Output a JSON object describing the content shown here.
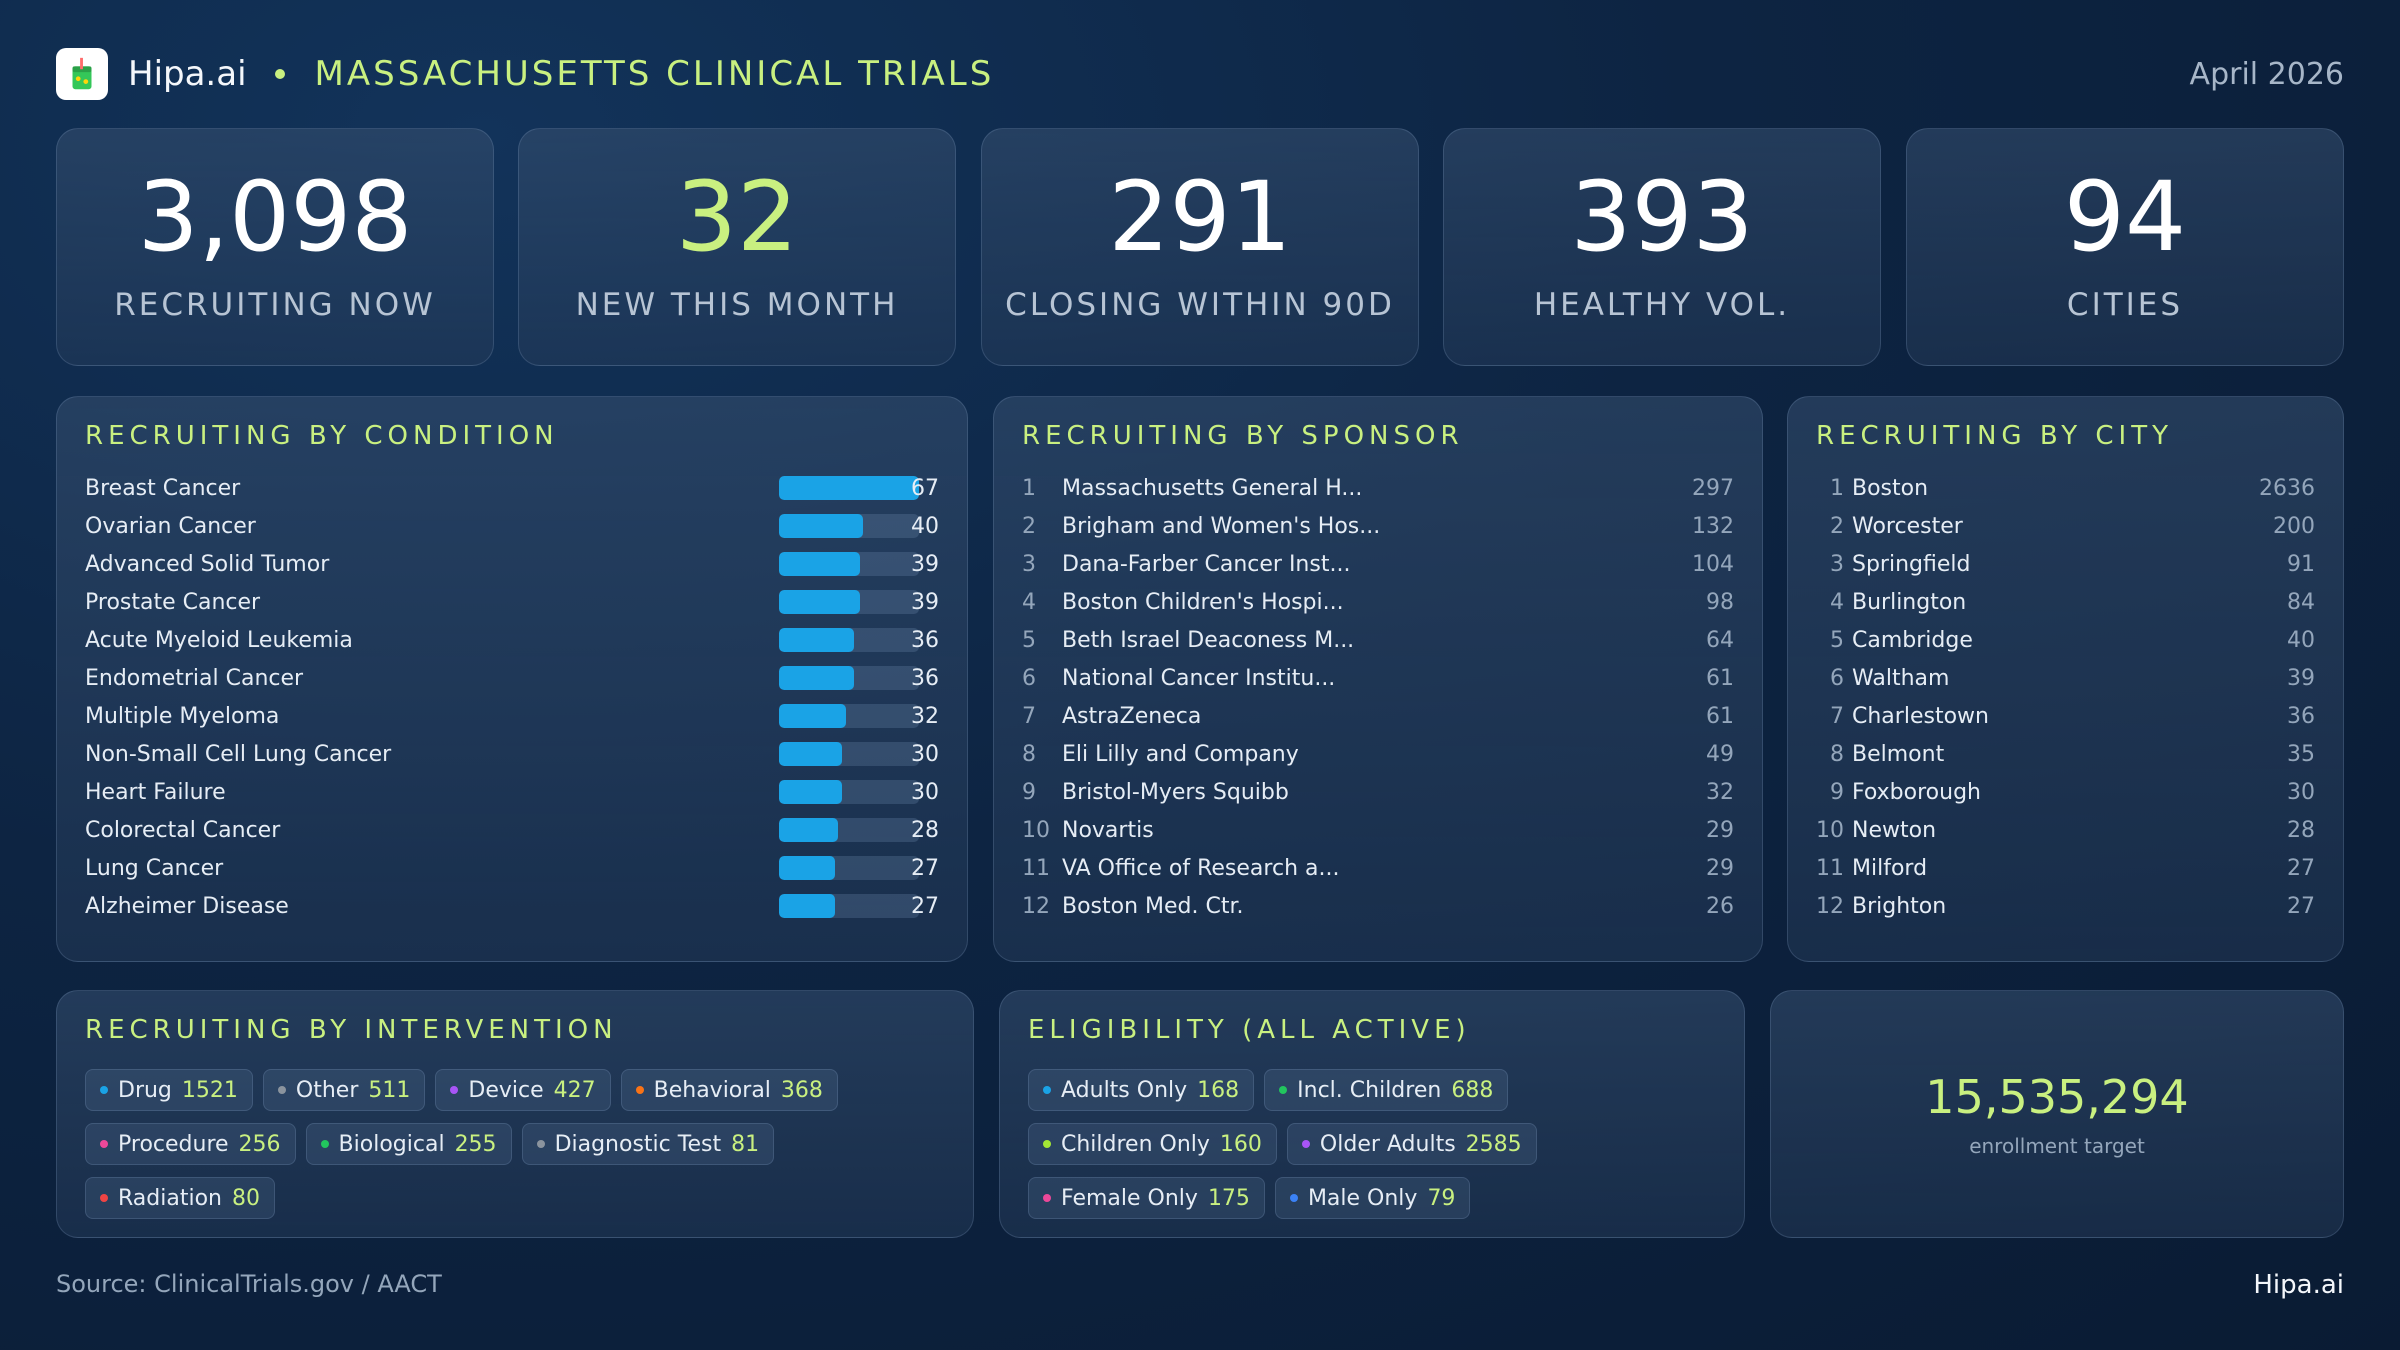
{
  "header": {
    "brand": "Hipa.ai",
    "title": "MASSACHUSETTS CLINICAL TRIALS",
    "date": "April 2026"
  },
  "stats": [
    {
      "value": "3,098",
      "label": "RECRUITING NOW",
      "accent": "#ffffff"
    },
    {
      "value": "32",
      "label": "NEW THIS MONTH",
      "accent": "#c9f080"
    },
    {
      "value": "291",
      "label": "CLOSING WITHIN 90D",
      "accent": "#ffffff"
    },
    {
      "value": "393",
      "label": "HEALTHY VOL.",
      "accent": "#ffffff"
    },
    {
      "value": "94",
      "label": "CITIES",
      "accent": "#ffffff"
    }
  ],
  "by_condition": {
    "title": "RECRUITING BY CONDITION",
    "max": 67,
    "items": [
      {
        "name": "Breast Cancer",
        "value": 67
      },
      {
        "name": "Ovarian Cancer",
        "value": 40
      },
      {
        "name": "Advanced Solid Tumor",
        "value": 39
      },
      {
        "name": "Prostate Cancer",
        "value": 39
      },
      {
        "name": "Acute Myeloid Leukemia",
        "value": 36
      },
      {
        "name": "Endometrial Cancer",
        "value": 36
      },
      {
        "name": "Multiple Myeloma",
        "value": 32
      },
      {
        "name": "Non-Small Cell Lung Cancer",
        "value": 30
      },
      {
        "name": "Heart Failure",
        "value": 30
      },
      {
        "name": "Colorectal Cancer",
        "value": 28
      },
      {
        "name": "Lung Cancer",
        "value": 27
      },
      {
        "name": "Alzheimer Disease",
        "value": 27
      }
    ]
  },
  "by_sponsor": {
    "title": "RECRUITING BY SPONSOR",
    "items": [
      {
        "rank": "1",
        "name": "Massachusetts General H...",
        "value": "297"
      },
      {
        "rank": "2",
        "name": "Brigham and Women's Hos...",
        "value": "132"
      },
      {
        "rank": "3",
        "name": "Dana-Farber Cancer Inst...",
        "value": "104"
      },
      {
        "rank": "4",
        "name": "Boston Children's Hospi...",
        "value": "98"
      },
      {
        "rank": "5",
        "name": "Beth Israel Deaconess M...",
        "value": "64"
      },
      {
        "rank": "6",
        "name": "National Cancer Institu...",
        "value": "61"
      },
      {
        "rank": "7",
        "name": "AstraZeneca",
        "value": "61"
      },
      {
        "rank": "8",
        "name": "Eli Lilly and Company",
        "value": "49"
      },
      {
        "rank": "9",
        "name": "Bristol-Myers Squibb",
        "value": "32"
      },
      {
        "rank": "10",
        "name": "Novartis",
        "value": "29"
      },
      {
        "rank": "11",
        "name": "VA Office of Research a...",
        "value": "29"
      },
      {
        "rank": "12",
        "name": "Boston Med. Ctr.",
        "value": "26"
      }
    ]
  },
  "by_city": {
    "title": "RECRUITING BY CITY",
    "items": [
      {
        "rank": "1",
        "name": "Boston",
        "value": "2636"
      },
      {
        "rank": "2",
        "name": "Worcester",
        "value": "200"
      },
      {
        "rank": "3",
        "name": "Springfield",
        "value": "91"
      },
      {
        "rank": "4",
        "name": "Burlington",
        "value": "84"
      },
      {
        "rank": "5",
        "name": "Cambridge",
        "value": "40"
      },
      {
        "rank": "6",
        "name": "Waltham",
        "value": "39"
      },
      {
        "rank": "7",
        "name": "Charlestown",
        "value": "36"
      },
      {
        "rank": "8",
        "name": "Belmont",
        "value": "35"
      },
      {
        "rank": "9",
        "name": "Foxborough",
        "value": "30"
      },
      {
        "rank": "10",
        "name": "Newton",
        "value": "28"
      },
      {
        "rank": "11",
        "name": "Milford",
        "value": "27"
      },
      {
        "rank": "12",
        "name": "Brighton",
        "value": "27"
      }
    ]
  },
  "by_intervention": {
    "title": "RECRUITING BY INTERVENTION",
    "tags": [
      {
        "label": "Drug",
        "count": "1521",
        "color": "#1aa3e6"
      },
      {
        "label": "Other",
        "count": "511",
        "color": "#8b949e"
      },
      {
        "label": "Device",
        "count": "427",
        "color": "#a855f7"
      },
      {
        "label": "Behavioral",
        "count": "368",
        "color": "#f97316"
      },
      {
        "label": "Procedure",
        "count": "256",
        "color": "#ec4899"
      },
      {
        "label": "Biological",
        "count": "255",
        "color": "#22c55e"
      },
      {
        "label": "Diagnostic Test",
        "count": "81",
        "color": "#8b949e"
      },
      {
        "label": "Radiation",
        "count": "80",
        "color": "#ef4444"
      }
    ]
  },
  "eligibility": {
    "title": "ELIGIBILITY (ALL ACTIVE)",
    "tags": [
      {
        "label": "Adults Only",
        "count": "168",
        "color": "#1aa3e6"
      },
      {
        "label": "Incl. Children",
        "count": "688",
        "color": "#22c55e"
      },
      {
        "label": "Children Only",
        "count": "160",
        "color": "#a3e635"
      },
      {
        "label": "Older Adults",
        "count": "2585",
        "color": "#a855f7"
      },
      {
        "label": "Female Only",
        "count": "175",
        "color": "#ec4899"
      },
      {
        "label": "Male Only",
        "count": "79",
        "color": "#3b82f6"
      }
    ]
  },
  "enrollment": {
    "value": "15,535,294",
    "label": "enrollment target"
  },
  "footer": {
    "source": "Source: ClinicalTrials.gov / AACT",
    "brand": "Hipa.ai"
  }
}
